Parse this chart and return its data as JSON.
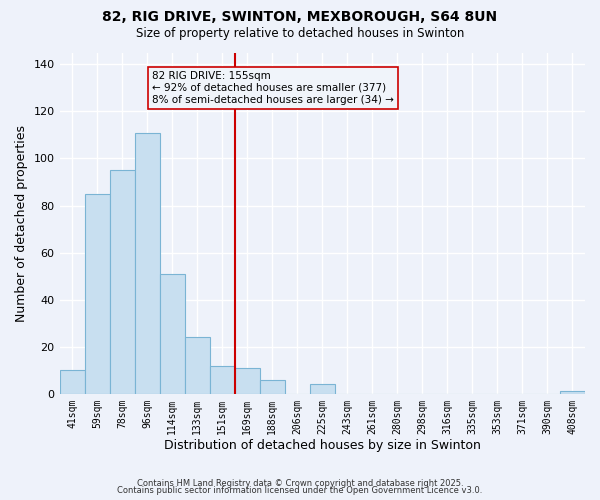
{
  "title": "82, RIG DRIVE, SWINTON, MEXBOROUGH, S64 8UN",
  "subtitle": "Size of property relative to detached houses in Swinton",
  "xlabel": "Distribution of detached houses by size in Swinton",
  "ylabel": "Number of detached properties",
  "bar_labels": [
    "41sqm",
    "59sqm",
    "78sqm",
    "96sqm",
    "114sqm",
    "133sqm",
    "151sqm",
    "169sqm",
    "188sqm",
    "206sqm",
    "225sqm",
    "243sqm",
    "261sqm",
    "280sqm",
    "298sqm",
    "316sqm",
    "335sqm",
    "353sqm",
    "371sqm",
    "390sqm",
    "408sqm"
  ],
  "bar_values": [
    10,
    85,
    95,
    111,
    51,
    24,
    12,
    11,
    6,
    0,
    4,
    0,
    0,
    0,
    0,
    0,
    0,
    0,
    0,
    0,
    1
  ],
  "bar_color": "#c8dff0",
  "bar_edge_color": "#7ab4d4",
  "reference_line_x": 6.5,
  "reference_line_color": "#cc0000",
  "annotation_title": "82 RIG DRIVE: 155sqm",
  "annotation_line1": "← 92% of detached houses are smaller (377)",
  "annotation_line2": "8% of semi-detached houses are larger (34) →",
  "annotation_box_edge_color": "#cc0000",
  "annotation_box_bg": "#f0f4fa",
  "ylim": [
    0,
    145
  ],
  "yticks": [
    0,
    20,
    40,
    60,
    80,
    100,
    120,
    140
  ],
  "footer_line1": "Contains HM Land Registry data © Crown copyright and database right 2025.",
  "footer_line2": "Contains public sector information licensed under the Open Government Licence v3.0.",
  "bg_color": "#eef2fa",
  "plot_bg_color": "#eef2fa"
}
